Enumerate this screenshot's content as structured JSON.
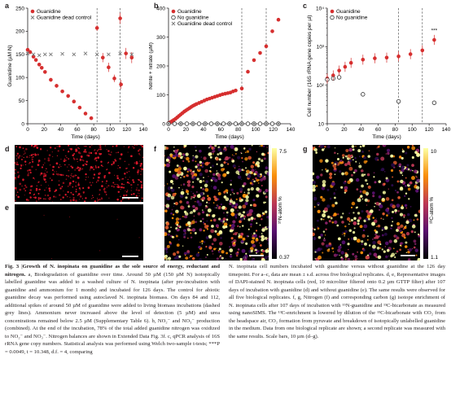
{
  "panel_labels": {
    "a": "a",
    "b": "b",
    "c": "c",
    "d": "d",
    "e": "e",
    "f": "f",
    "g": "g"
  },
  "chart_data": [
    {
      "id": "a",
      "type": "scatter",
      "xlabel": "Time (days)",
      "ylabel": "Guanidine (µM N)",
      "xlim": [
        0,
        140
      ],
      "ylim": [
        0,
        250
      ],
      "xticks": [
        0,
        20,
        40,
        60,
        80,
        100,
        120,
        140
      ],
      "yticks": [
        0,
        50,
        100,
        150,
        200,
        250
      ],
      "vlines": [
        84,
        112
      ],
      "legend": [
        "Guanidine",
        "Guanidine dead control"
      ],
      "series": [
        {
          "name": "Guanidine",
          "color": "#d62f2f",
          "marker": "circle",
          "x": [
            0,
            3,
            7,
            10,
            14,
            17,
            21,
            28,
            35,
            42,
            49,
            56,
            63,
            70,
            77,
            84,
            91,
            98,
            105,
            112,
            113,
            119,
            126
          ],
          "y": [
            160,
            155,
            145,
            138,
            128,
            121,
            112,
            95,
            82,
            70,
            60,
            48,
            35,
            22,
            12,
            207,
            143,
            122,
            98,
            228,
            85,
            152,
            143
          ],
          "err": [
            4,
            4,
            4,
            4,
            4,
            4,
            4,
            4,
            4,
            4,
            4,
            4,
            4,
            4,
            4,
            6,
            10,
            10,
            8,
            12,
            10,
            12,
            12
          ]
        },
        {
          "name": "Guanidine dead control",
          "color": "#777777",
          "marker": "x",
          "x": [
            0,
            7,
            14,
            21,
            28,
            42,
            56,
            70,
            84,
            98,
            112,
            126
          ],
          "y": [
            152,
            150,
            148,
            150,
            150,
            151,
            150,
            152,
            150,
            150,
            152,
            150
          ]
        }
      ]
    },
    {
      "id": "b",
      "type": "scatter",
      "xlabel": "Time (days)",
      "ylabel": "Nitrite + nitrate (µM)",
      "xlim": [
        0,
        140
      ],
      "ylim": [
        0,
        400
      ],
      "xticks": [
        0,
        20,
        40,
        60,
        80,
        100,
        120,
        140
      ],
      "yticks": [
        0,
        100,
        200,
        300,
        400
      ],
      "vlines": [
        84,
        112
      ],
      "legend": [
        "Guanidine",
        "No guanidine",
        "Guanidine dead control"
      ],
      "series": [
        {
          "name": "Guanidine",
          "color": "#d62f2f",
          "marker": "circle",
          "x": [
            0,
            2,
            4,
            6,
            8,
            10,
            12,
            14,
            16,
            18,
            20,
            22,
            24,
            26,
            28,
            30,
            32,
            35,
            38,
            41,
            44,
            47,
            50,
            53,
            56,
            59,
            62,
            65,
            68,
            71,
            74,
            77,
            84,
            91,
            98,
            105,
            112,
            119,
            126
          ],
          "y": [
            2,
            5,
            9,
            13,
            17,
            22,
            27,
            32,
            37,
            42,
            46,
            50,
            54,
            58,
            62,
            65,
            68,
            72,
            76,
            80,
            84,
            87,
            90,
            93,
            96,
            99,
            102,
            104,
            106,
            108,
            112,
            115,
            122,
            180,
            220,
            245,
            268,
            320,
            360
          ]
        },
        {
          "name": "No guanidine",
          "color": "#333333",
          "marker": "open-circle",
          "x": [
            0,
            7,
            14,
            21,
            28,
            35,
            42,
            49,
            56,
            63,
            70,
            77,
            84,
            91,
            98,
            105,
            112,
            119,
            126
          ],
          "y": [
            0,
            0,
            0,
            0,
            0,
            0,
            0,
            0,
            0,
            0,
            0,
            0,
            0,
            0,
            0,
            0,
            0,
            0,
            0
          ]
        },
        {
          "name": "Guanidine dead control",
          "color": "#777777",
          "marker": "x",
          "x": [
            0,
            14,
            28,
            42,
            56,
            70,
            84,
            98,
            112,
            126
          ],
          "y": [
            0,
            0,
            0,
            0,
            0,
            0,
            0,
            0,
            0,
            0
          ]
        }
      ]
    },
    {
      "id": "c",
      "type": "scatter",
      "xlabel": "Time (days)",
      "ylabel": "Cell number (16S rRNA gene copies per µl)",
      "xlim": [
        0,
        140
      ],
      "ylim": [
        10,
        10000
      ],
      "yscale": "log",
      "xticks": [
        0,
        20,
        40,
        60,
        80,
        100,
        120,
        140
      ],
      "yticks": [
        10,
        100,
        1000,
        10000
      ],
      "ytick_labels": [
        "10",
        "10²",
        "10³",
        "10⁴"
      ],
      "vlines": [
        84,
        112
      ],
      "legend": [
        "Guanidine",
        "No guanidine"
      ],
      "annotation": "***",
      "series": [
        {
          "name": "Guanidine",
          "color": "#d62f2f",
          "marker": "circle",
          "x": [
            0,
            7,
            14,
            21,
            28,
            42,
            56,
            70,
            84,
            98,
            112,
            126
          ],
          "y": [
            150,
            180,
            240,
            300,
            380,
            460,
            500,
            520,
            560,
            640,
            800,
            1500
          ]
        },
        {
          "name": "No guanidine",
          "color": "#333333",
          "marker": "open-circle",
          "x": [
            0,
            7,
            14,
            42,
            84,
            126
          ],
          "y": [
            140,
            150,
            160,
            58,
            38,
            35
          ]
        }
      ]
    }
  ],
  "colorbars": {
    "f": {
      "max": "7.5",
      "min": "0.37",
      "label": "¹⁵N-atom %"
    },
    "g": {
      "max": "10",
      "min": "1.1",
      "label": "¹³C-atom %"
    }
  },
  "caption": {
    "fig_label": "Fig. 3 |",
    "title": "Growth of N. inopinata on guanidine as the sole source of energy, reductant and nitrogen.",
    "left_text": " a, Biodegradation of guanidine over time. Around 50 µM (150 µM N) isotopically labelled guanidine was added to a washed culture of N. inopinata (after pre-incubation with guanidine and ammonium for 1 month) and incubated for 126 days. The control for abiotic guanidine decay was performed using autoclaved N. inopinata biomass. On days 84 and 112, additional spikes of around 50 µM of guanidine were added to living biomass incubations (dashed grey lines). Ammonium never increased above the level of detection (5 µM) and urea concentrations remained below 2.5 µM (Supplementary Table 6). b, NO₂⁻ and NO₃⁻ production (combined). At the end of the incubation, 78% of the total added guanidine nitrogen was oxidized to NO₂⁻ and NO₃⁻. Nitrogen balances are shown in Extended Data Fig. 3f. c, qPCR analysis of 16S rRNA gene copy numbers. Statistical analysis was performed using Welch two-sample t-tests; ***P = 0.0049, t = 10.348, d.f. = 4, comparing",
    "right_text": "N. inopinata cell numbers incubated with guanidine versus without guanidine at the 126 day timepoint. For a–c, data are mean ± s.d. across five biological replicates. d, e, Representative images of DAPI-stained N. inopinata cells (red, 10 microliter filtered onto 0.2 µm GTTP filter) after 107 days of incubation with guanidine (d) and without guanidine (e). The same results were observed for all five biological replicates. f, g, Nitrogen (f) and corresponding carbon (g) isotope enrichment of N. inopinata cells after 107 days of incubation with ¹⁵N-guanidine and ¹³C-bicarbonate as measured using nanoSIMS. The ¹³C-enrichment is lowered by dilution of the ¹³C-bicarbonate with CO₂ from the headspace air, CO₂ formation from pyruvate and breakdown of isotopically unlabelled guanidine in the medium. Data from one biological replicate are shown; a second replicate was measured with the same results. Scale bars, 10 µm (d–g)."
  }
}
